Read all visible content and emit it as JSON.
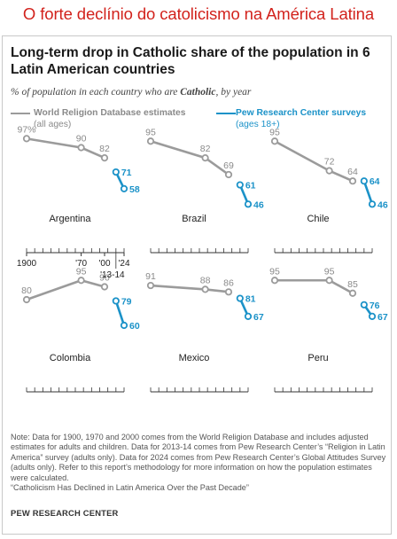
{
  "banner": {
    "text": "O forte declínio do catolicismo na América Latina"
  },
  "chart_data": {
    "type": "line",
    "title": "Long-term drop in Catholic share of the population in 6 Latin American countries",
    "subtitle_prefix": "% of population in each country who are ",
    "subtitle_bold": "Catholic",
    "subtitle_suffix": ", by year",
    "legend": {
      "gray": {
        "label": "World Religion Database estimates",
        "sublabel": "(all ages)",
        "color": "#9b9b9b"
      },
      "blue": {
        "label": "Pew Research Center surveys",
        "sublabel": "(ages 18+)",
        "color": "#1b92c8"
      }
    },
    "x_ticks": [
      "1900",
      "'70",
      "'00",
      "'24",
      "'13-14"
    ],
    "series_order": [
      "Argentina",
      "Brazil",
      "Chile",
      "Colombia",
      "Mexico",
      "Peru"
    ],
    "countries": [
      {
        "name": "Argentina",
        "wrd": [
          {
            "x": 1900,
            "y": 97,
            "label": "97%"
          },
          {
            "x": 1970,
            "y": 90,
            "label": "90"
          },
          {
            "x": 2000,
            "y": 82,
            "label": "82"
          }
        ],
        "pew": [
          {
            "x": 2014,
            "y": 71,
            "label": "71"
          },
          {
            "x": 2024,
            "y": 58,
            "label": "58"
          }
        ]
      },
      {
        "name": "Brazil",
        "wrd": [
          {
            "x": 1900,
            "y": 95,
            "label": "95"
          },
          {
            "x": 1970,
            "y": 82,
            "label": "82"
          },
          {
            "x": 2000,
            "y": 69,
            "label": "69"
          }
        ],
        "pew": [
          {
            "x": 2014,
            "y": 61,
            "label": "61"
          },
          {
            "x": 2024,
            "y": 46,
            "label": "46"
          }
        ]
      },
      {
        "name": "Chile",
        "wrd": [
          {
            "x": 1900,
            "y": 95,
            "label": "95"
          },
          {
            "x": 1970,
            "y": 72,
            "label": "72"
          },
          {
            "x": 2000,
            "y": 64,
            "label": "64"
          }
        ],
        "pew": [
          {
            "x": 2014,
            "y": 64,
            "label": "64"
          },
          {
            "x": 2024,
            "y": 46,
            "label": "46"
          }
        ]
      },
      {
        "name": "Colombia",
        "wrd": [
          {
            "x": 1900,
            "y": 80,
            "label": "80"
          },
          {
            "x": 1970,
            "y": 95,
            "label": "95"
          },
          {
            "x": 2000,
            "y": 90,
            "label": "90"
          }
        ],
        "pew": [
          {
            "x": 2014,
            "y": 79,
            "label": "79"
          },
          {
            "x": 2024,
            "y": 60,
            "label": "60"
          }
        ]
      },
      {
        "name": "Mexico",
        "wrd": [
          {
            "x": 1900,
            "y": 91,
            "label": "91"
          },
          {
            "x": 1970,
            "y": 88,
            "label": "88"
          },
          {
            "x": 2000,
            "y": 86,
            "label": "86"
          }
        ],
        "pew": [
          {
            "x": 2014,
            "y": 81,
            "label": "81"
          },
          {
            "x": 2024,
            "y": 67,
            "label": "67"
          }
        ]
      },
      {
        "name": "Peru",
        "wrd": [
          {
            "x": 1900,
            "y": 95,
            "label": "95"
          },
          {
            "x": 1970,
            "y": 95,
            "label": "95"
          },
          {
            "x": 2000,
            "y": 85,
            "label": "85"
          }
        ],
        "pew": [
          {
            "x": 2014,
            "y": 76,
            "label": "76"
          },
          {
            "x": 2024,
            "y": 67,
            "label": "67"
          }
        ]
      }
    ]
  },
  "note": "Note: Data for 1900, 1970 and 2000 comes from the World Religion Database and includes adjusted estimates for adults and children. Data for 2013-14 comes from Pew Research Center’s “Religion in Latin America” survey (adults only). Data for 2024 comes from Pew Research Center’s Global Attitudes Survey (adults only). Refer to this report’s methodology for more information on how the population estimates were calculated.",
  "note_source": "“Catholicism Has Declined in Latin America Over the Past Decade”",
  "source": "PEW RESEARCH CENTER"
}
